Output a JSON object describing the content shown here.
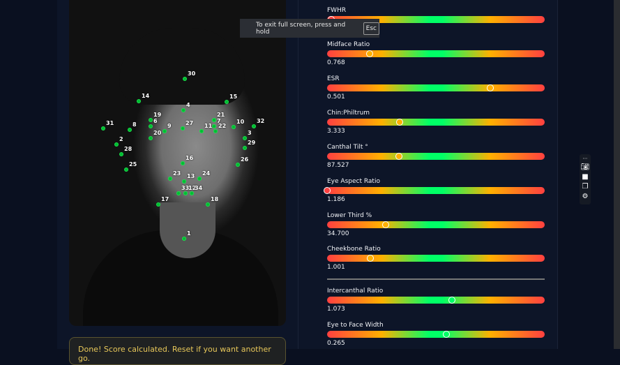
{
  "fullscreen_toast": {
    "text": "To exit full screen, press and hold",
    "key": "Esc"
  },
  "status_message": "Done! Score calculated. Reset if you want another go.",
  "landmarks": [
    "30",
    "14",
    "15",
    "4",
    "19",
    "21",
    "6",
    "7",
    "8",
    "9",
    "27",
    "11",
    "22",
    "10",
    "31",
    "32",
    "20",
    "3",
    "2",
    "29",
    "28",
    "16",
    "26",
    "25",
    "23",
    "13",
    "24",
    "33",
    "12",
    "34",
    "17",
    "18",
    "1"
  ],
  "colors": {
    "dot": "#19e34a",
    "bad": "#ff4040",
    "mid": "#ffb000",
    "good": "#00ff66"
  },
  "metrics": [
    {
      "label": "FWHR",
      "value": "",
      "position": 0.02
    },
    {
      "label": "Midface Ratio",
      "value": "0.768",
      "position": 0.195
    },
    {
      "label": "ESR",
      "value": "0.501",
      "position": 0.75
    },
    {
      "label": "Chin:Philtrum",
      "value": "3.333",
      "position": 0.333
    },
    {
      "label": "Canthal Tilt °",
      "value": "87.527",
      "position": 0.33
    },
    {
      "label": "Eye Aspect Ratio",
      "value": "1.186",
      "position": 0.0
    },
    {
      "label": "Lower Third %",
      "value": "34.700",
      "position": 0.27
    },
    {
      "label": "Cheekbone Ratio",
      "value": "1.001",
      "position": 0.2
    },
    {
      "label": "Intercanthal Ratio",
      "value": "1.073",
      "position": 0.573
    },
    {
      "label": "Eye to Face Width",
      "value": "0.265",
      "position": 0.548
    }
  ],
  "toolbar_icons": [
    "camera-icon",
    "video-icon",
    "screens-icon",
    "gear-icon"
  ]
}
